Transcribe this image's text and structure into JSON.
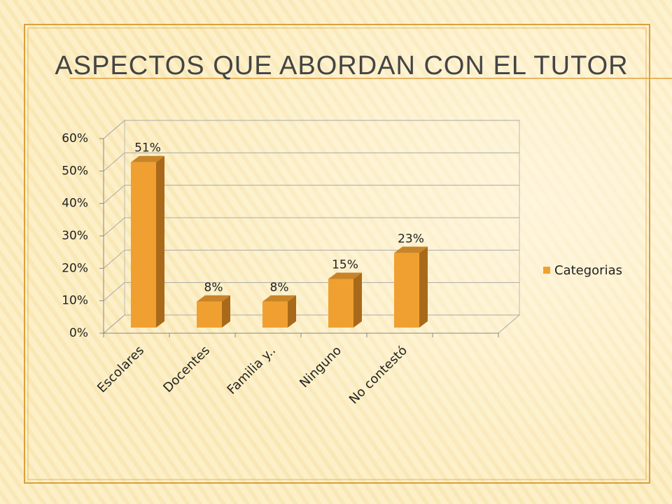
{
  "chart_data": {
    "type": "bar3d",
    "title": "ASPECTOS QUE ABORDAN CON EL TUTOR",
    "categories": [
      "Escolares",
      "Docentes",
      "Familia y..",
      "Ninguno",
      "No contestó"
    ],
    "series": [
      {
        "name": "Categorias",
        "color": "#f0a030",
        "values": [
          51,
          8,
          8,
          15,
          23
        ],
        "value_labels": [
          "51%",
          "8%",
          "8%",
          "15%",
          "23%"
        ]
      }
    ],
    "ylim": [
      0,
      60
    ],
    "yticks": [
      {
        "value": 0,
        "label": "0%"
      },
      {
        "value": 10,
        "label": "10%"
      },
      {
        "value": 20,
        "label": "20%"
      },
      {
        "value": 30,
        "label": "30%"
      },
      {
        "value": 40,
        "label": "40%"
      },
      {
        "value": 50,
        "label": "50%"
      },
      {
        "value": 60,
        "label": "60%"
      }
    ],
    "grid": true,
    "legend": "right"
  }
}
